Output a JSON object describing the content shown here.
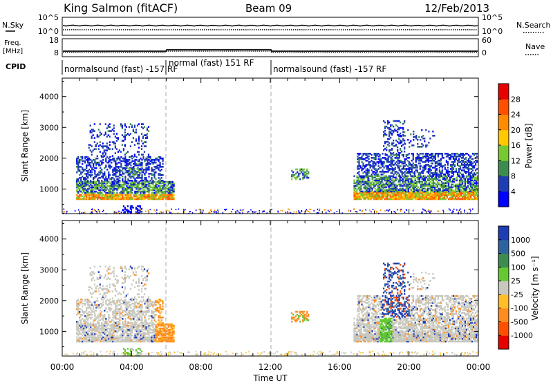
{
  "header": {
    "station": "King Salmon (fitACF)",
    "beam": "Beam 09",
    "date": "12/Feb/2013"
  },
  "panels": {
    "noise": {
      "left_label": "N.Sky",
      "left_ticks": [
        "10^5",
        "10^0"
      ],
      "right_label": "N.Search",
      "right_ticks": [
        "10^5",
        "10^0"
      ]
    },
    "freq": {
      "left_label_1": "Freq.",
      "left_label_2": "[MHz]",
      "left_ticks": [
        "18",
        "8"
      ],
      "right_label": "Nave",
      "right_ticks": [
        "60",
        "0"
      ]
    },
    "cpid": {
      "label": "CPID",
      "segments": [
        {
          "text": "normalsound (fast) -157 RF"
        },
        {
          "text": "normal (fast) 151 RF"
        },
        {
          "text": "normalsound (fast) -157 RF"
        }
      ]
    }
  },
  "chart_data": [
    {
      "type": "heatmap",
      "quantity": "power",
      "ylabel": "Slant Range [km]",
      "yticks": [
        1000,
        2000,
        3000,
        4000
      ],
      "ylim": [
        200,
        4600
      ],
      "xlim_hours": [
        0,
        24
      ],
      "colorbar": {
        "label": "Power [dB]",
        "ticks": [
          "4",
          "8",
          "12",
          "16",
          "20",
          "24",
          "28"
        ],
        "colors": [
          "#0000ff",
          "#1e3cb4",
          "#3c8c50",
          "#78c830",
          "#ffc800",
          "#ff8c00",
          "#ff5000",
          "#e60000"
        ]
      }
    },
    {
      "type": "heatmap",
      "quantity": "velocity",
      "ylabel": "Slant Range [km]",
      "yticks": [
        1000,
        2000,
        3000,
        4000
      ],
      "ylim": [
        200,
        4600
      ],
      "xlim_hours": [
        0,
        24
      ],
      "colorbar": {
        "label": "Velocity [m s⁻¹]",
        "ticks": [
          "1000",
          "500",
          "100",
          "25",
          "-25",
          "-100",
          "-500",
          "-1000"
        ],
        "colors": [
          "#1e3cb4",
          "#2d64a0",
          "#3c8c50",
          "#64c832",
          "#c8c8be",
          "#ffbe28",
          "#ff8c1e",
          "#ff5000",
          "#e60000"
        ]
      }
    }
  ],
  "xaxis": {
    "label": "Time UT",
    "ticks": [
      "00:00",
      "04:00",
      "08:00",
      "12:00",
      "16:00",
      "20:00",
      "00:00"
    ]
  }
}
